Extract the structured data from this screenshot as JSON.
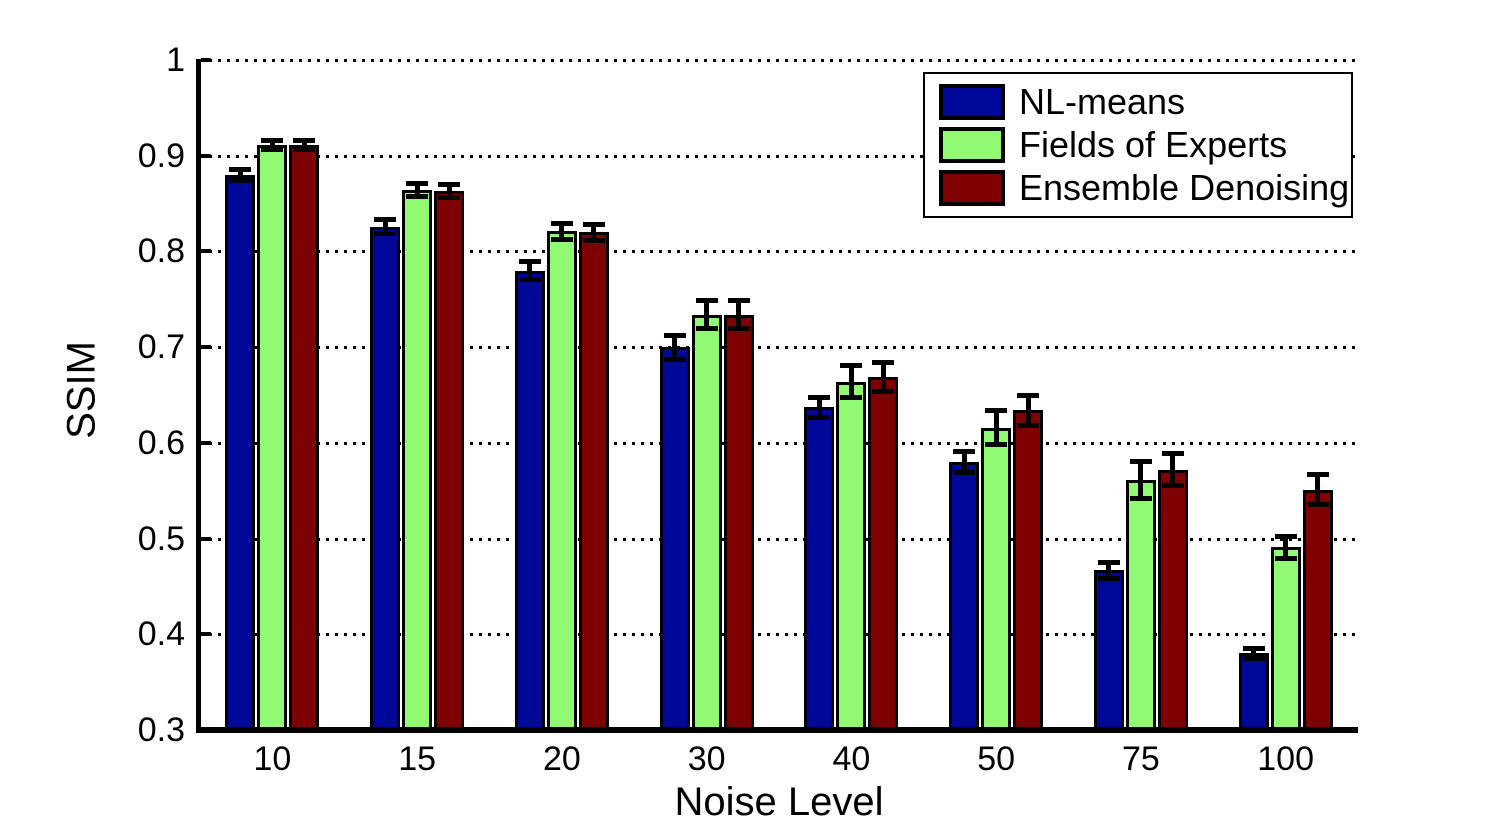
{
  "figure": {
    "background": "#FFFFFF",
    "axis_color": "#000000"
  },
  "chart_data": {
    "type": "bar",
    "title": "",
    "xlabel": "Noise Level",
    "ylabel": "SSIM",
    "ylim": [
      0.3,
      1.0
    ],
    "yticks": [
      0.3,
      0.4,
      0.5,
      0.6,
      0.7,
      0.8,
      0.9,
      1
    ],
    "ytick_labels": [
      "0.3",
      "0.4",
      "0.5",
      "0.6",
      "0.7",
      "0.8",
      "0.9",
      "1"
    ],
    "categories": [
      "10",
      "15",
      "20",
      "30",
      "40",
      "50",
      "75",
      "100"
    ],
    "grid": "horizontal-dotted",
    "legend_position": "top-right-inside",
    "bar_edge_color": "#000000",
    "error_bar_color": "#000000",
    "series": [
      {
        "name": "NL-means",
        "color": "#000899",
        "values": [
          0.88,
          0.826,
          0.78,
          0.7,
          0.637,
          0.58,
          0.467,
          0.38
        ],
        "errors": [
          0.006,
          0.008,
          0.01,
          0.013,
          0.011,
          0.011,
          0.009,
          0.006
        ]
      },
      {
        "name": "Fields of Experts",
        "color": "#8FFA72",
        "values": [
          0.911,
          0.864,
          0.821,
          0.734,
          0.664,
          0.616,
          0.561,
          0.491
        ],
        "errors": [
          0.005,
          0.007,
          0.009,
          0.015,
          0.017,
          0.018,
          0.02,
          0.012
        ]
      },
      {
        "name": "Ensemble Denoising",
        "color": "#7E0000",
        "values": [
          0.911,
          0.863,
          0.82,
          0.734,
          0.669,
          0.634,
          0.572,
          0.551
        ],
        "errors": [
          0.005,
          0.007,
          0.009,
          0.015,
          0.016,
          0.016,
          0.017,
          0.016
        ]
      }
    ]
  }
}
